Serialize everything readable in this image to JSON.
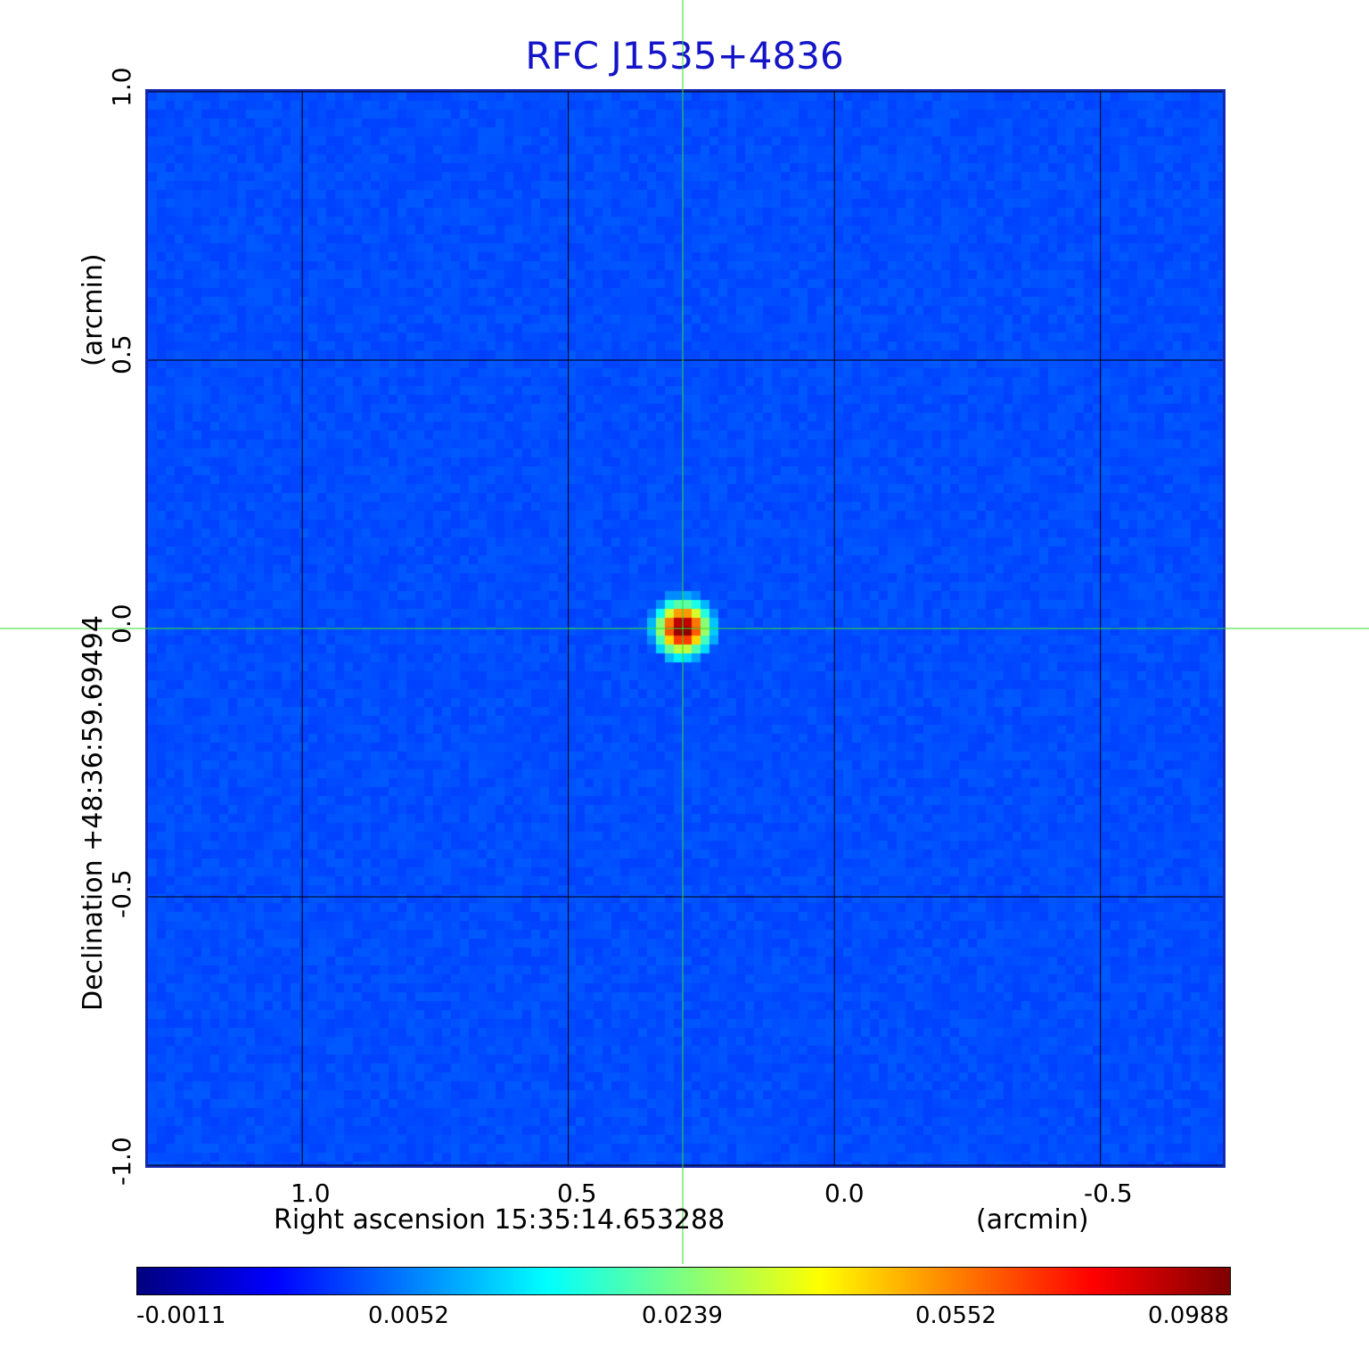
{
  "chart_data": {
    "type": "heatmap",
    "title": "RFC J1535+4836",
    "xlabel": "Right ascension  15:35:14.653288",
    "xlabel_unit": "(arcmin)",
    "ylabel": "Declination  +48:36:59.69494",
    "ylabel_unit": "(arcmin)",
    "x_ticks": [
      1.0,
      0.5,
      0.0,
      -0.5
    ],
    "x_tick_labels": [
      "1.0",
      "0.5",
      "0.0",
      "-0.5"
    ],
    "y_ticks": [
      1.0,
      0.5,
      0.0,
      -0.5,
      -1.0
    ],
    "y_tick_labels": [
      "1.0",
      "0.5",
      "0.0",
      "-0.5",
      "-1.0"
    ],
    "xlim": [
      1.29,
      -0.73
    ],
    "ylim": [
      -1.0,
      1.0
    ],
    "x_reversed": true,
    "grid": true,
    "crosshair": {
      "x": 0.285,
      "y": 0.0,
      "color": "#33dd33"
    },
    "source_peak": {
      "x": 0.285,
      "y": 0.0,
      "value": 0.0988
    },
    "background_level": 0.0,
    "colormap": "jet",
    "colorbar": {
      "orientation": "horizontal",
      "placement": "bottom",
      "tick_labels": [
        "-0.0011",
        "0.0052",
        "0.0239",
        "0.0552",
        "0.0988"
      ],
      "min": -0.0011,
      "max": 0.0988
    }
  },
  "colors": {
    "title": "#1414c8",
    "frame": "#1428b4",
    "grid": "#000000",
    "crosshair": "#33dd33"
  }
}
